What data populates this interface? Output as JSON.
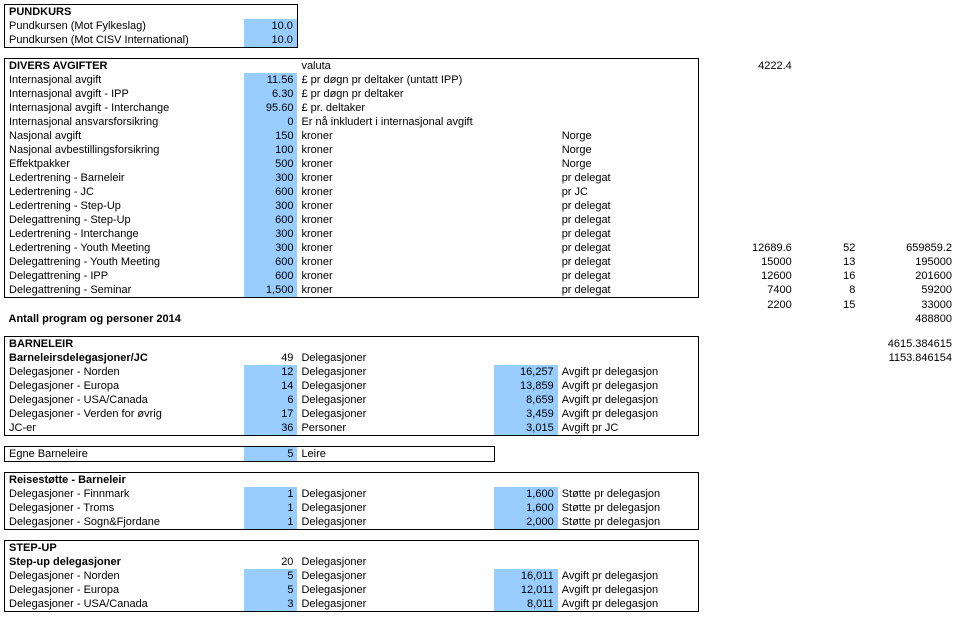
{
  "sections": {
    "pundkurs": {
      "title": "PUNDKURS",
      "rows": [
        {
          "label": "Pundkursen (Mot Fylkeslag)",
          "val": "10.0"
        },
        {
          "label": "Pundkursen (Mot CISV International)",
          "val": "10.0"
        }
      ]
    },
    "divers": {
      "title": "DIVERS AVGIFTER",
      "valuta_label": "valuta",
      "valuta_val": "4222.4",
      "rows": [
        {
          "label": "Internasjonal avgift",
          "val": "11.56",
          "unit": "£ pr døgn pr deltaker (untatt IPP)"
        },
        {
          "label": "Internasjonal avgift - IPP",
          "val": "6.30",
          "unit": "£ pr døgn pr deltaker"
        },
        {
          "label": "Internasjonal avgift - Interchange",
          "val": "95.60",
          "unit": "£ pr. deltaker"
        },
        {
          "label": "Internasjonal ansvarsforsikring",
          "val": "0",
          "unit": "Er nå inkludert i internasjonal avgift"
        },
        {
          "label": "Nasjonal avgift",
          "val": "150",
          "unit": "kroner",
          "ext": "Norge"
        },
        {
          "label": "Nasjonal avbestillingsforsikring",
          "val": "100",
          "unit": "kroner",
          "ext": "Norge"
        },
        {
          "label": "Effektpakker",
          "val": "500",
          "unit": "kroner",
          "ext": "Norge"
        },
        {
          "label": "Ledertrening - Barneleir",
          "val": "300",
          "unit": "kroner",
          "ext": "pr delegat"
        },
        {
          "label": "Ledertrening - JC",
          "val": "600",
          "unit": "kroner",
          "ext": "pr JC"
        },
        {
          "label": "Ledertrening - Step-Up",
          "val": "300",
          "unit": "kroner",
          "ext": "pr delegat"
        },
        {
          "label": "Delegattrening - Step-Up",
          "val": "600",
          "unit": "kroner",
          "ext": "pr delegat"
        },
        {
          "label": "Ledertrening - Interchange",
          "val": "300",
          "unit": "kroner",
          "ext": "pr delegat"
        },
        {
          "label": "Ledertrening - Youth Meeting",
          "val": "300",
          "unit": "kroner",
          "ext": "pr delegat",
          "n1": "12689.6",
          "n2": "52",
          "n3": "659859.2"
        },
        {
          "label": "Delegattrening - Youth Meeting",
          "val": "600",
          "unit": "kroner",
          "ext": "pr delegat",
          "n1": "15000",
          "n2": "13",
          "n3": "195000"
        },
        {
          "label": "Delegattrening - IPP",
          "val": "600",
          "unit": "kroner",
          "ext": "pr delegat",
          "n1": "12600",
          "n2": "16",
          "n3": "201600"
        },
        {
          "label": "Delegattrening - Seminar",
          "val": "1,500",
          "unit": "kroner",
          "ext": "pr delegat",
          "n1": "7400",
          "n2": "8",
          "n3": "59200"
        }
      ],
      "tail1": {
        "n1": "2200",
        "n2": "15",
        "n3": "33000"
      },
      "antall_label": "Antall program og personer 2014",
      "antall_val": "488800"
    },
    "barneleir": {
      "title": "BARNELEIR",
      "title_val": "4615.384615",
      "sub_label": "Barneleirsdelegasjoner/JC",
      "sub_val": "49",
      "sub_unit": "Delegasjoner",
      "sub_right": "1153.846154",
      "rows": [
        {
          "label": "Delegasjoner - Norden",
          "val": "12",
          "unit": "Delegasjoner",
          "amt": "16,257",
          "desc": "Avgift pr delegasjon"
        },
        {
          "label": "Delegasjoner - Europa",
          "val": "14",
          "unit": "Delegasjoner",
          "amt": "13,859",
          "desc": "Avgift pr delegasjon"
        },
        {
          "label": "Delegasjoner - USA/Canada",
          "val": "6",
          "unit": "Delegasjoner",
          "amt": "8,659",
          "desc": "Avgift pr delegasjon"
        },
        {
          "label": "Delegasjoner - Verden for øvrig",
          "val": "17",
          "unit": "Delegasjoner",
          "amt": "3,459",
          "desc": "Avgift pr delegasjon"
        },
        {
          "label": "JC-er",
          "val": "36",
          "unit": "Personer",
          "amt": "3,015",
          "desc": "Avgift pr JC"
        }
      ]
    },
    "egne": {
      "label": "Egne Barneleire",
      "val": "5",
      "unit": "Leire"
    },
    "reisestotte": {
      "title": "Reisestøtte - Barneleir",
      "rows": [
        {
          "label": "Delegasjoner - Finnmark",
          "val": "1",
          "unit": "Delegasjoner",
          "amt": "1,600",
          "desc": "Støtte pr delegasjon"
        },
        {
          "label": "Delegasjoner - Troms",
          "val": "1",
          "unit": "Delegasjoner",
          "amt": "1,600",
          "desc": "Støtte pr delegasjon"
        },
        {
          "label": "Delegasjoner - Sogn&Fjordane",
          "val": "1",
          "unit": "Delegasjoner",
          "amt": "2,000",
          "desc": "Støtte pr delegasjon"
        }
      ]
    },
    "stepup": {
      "title": "STEP-UP",
      "sub_label": "Step-up delegasjoner",
      "sub_val": "20",
      "sub_unit": "Delegasjoner",
      "rows": [
        {
          "label": "Delegasjoner - Norden",
          "val": "5",
          "unit": "Delegasjoner",
          "amt": "16,011",
          "desc": "Avgift pr delegasjon"
        },
        {
          "label": "Delegasjoner - Europa",
          "val": "5",
          "unit": "Delegasjoner",
          "amt": "12,011",
          "desc": "Avgift pr delegasjon"
        },
        {
          "label": "Delegasjoner - USA/Canada",
          "val": "3",
          "unit": "Delegasjoner",
          "amt": "8,011",
          "desc": "Avgift pr delegasjon"
        }
      ]
    }
  }
}
